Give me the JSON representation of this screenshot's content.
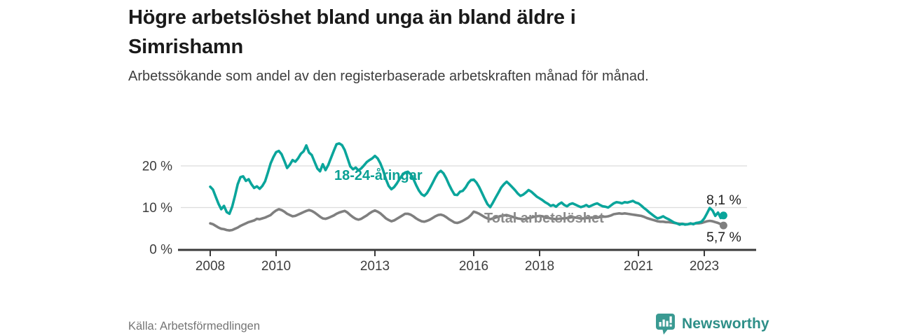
{
  "chart_data": {
    "type": "line",
    "title": "Högre arbetslöshet bland unga än bland äldre i Simrishamn",
    "subtitle": "Arbetssökande som andel av den registerbaserade arbetskraften månad för månad.",
    "source": "Källa: Arbetsförmedlingen",
    "unit": "%",
    "frequency": "monthly",
    "x_start": "2008-01",
    "x_end": "2023-08",
    "x_ticks": [
      2008,
      2010,
      2013,
      2016,
      2018,
      2021,
      2023
    ],
    "y_ticks": [
      {
        "value": 0,
        "label": "0 %"
      },
      {
        "value": 10,
        "label": "10 %"
      },
      {
        "value": 20,
        "label": "20 %"
      }
    ],
    "ylim": [
      0,
      28
    ],
    "grid": "horizontal",
    "legend_position": "inline-annotations",
    "series": [
      {
        "id": "total",
        "name": "Total arbetslöshet",
        "color": "#7f7f7f",
        "end_value": 5.7,
        "end_label": "5,7 %",
        "values": [
          6.2,
          6.0,
          5.6,
          5.2,
          4.9,
          4.8,
          4.6,
          4.5,
          4.6,
          4.9,
          5.2,
          5.6,
          5.9,
          6.2,
          6.5,
          6.7,
          6.9,
          7.3,
          7.2,
          7.4,
          7.6,
          7.9,
          8.2,
          8.8,
          9.3,
          9.6,
          9.4,
          9.0,
          8.5,
          8.2,
          7.9,
          8.0,
          8.3,
          8.6,
          8.9,
          9.2,
          9.4,
          9.2,
          8.8,
          8.3,
          7.8,
          7.4,
          7.3,
          7.5,
          7.8,
          8.1,
          8.5,
          8.8,
          9.0,
          9.2,
          8.8,
          8.2,
          7.7,
          7.3,
          7.1,
          7.3,
          7.7,
          8.1,
          8.6,
          9.0,
          9.3,
          9.0,
          8.6,
          8.0,
          7.4,
          7.0,
          6.7,
          6.9,
          7.3,
          7.7,
          8.1,
          8.5,
          8.5,
          8.3,
          7.9,
          7.4,
          7.0,
          6.7,
          6.6,
          6.8,
          7.1,
          7.5,
          7.9,
          8.2,
          8.3,
          8.1,
          7.7,
          7.2,
          6.8,
          6.4,
          6.3,
          6.5,
          6.8,
          7.2,
          7.6,
          8.2,
          9.0,
          8.8,
          8.5,
          8.1,
          7.7,
          7.4,
          7.2,
          7.4,
          7.6,
          7.8,
          8.0,
          8.1,
          8.2,
          8.0,
          7.8,
          7.6,
          7.4,
          7.3,
          7.2,
          7.3,
          7.5,
          7.6,
          7.8,
          7.9,
          8.0,
          7.9,
          7.7,
          7.5,
          7.4,
          7.3,
          7.2,
          7.3,
          7.4,
          7.4,
          7.5,
          7.6,
          7.7,
          7.6,
          7.5,
          7.4,
          7.4,
          7.5,
          7.5,
          7.6,
          7.6,
          7.7,
          7.7,
          7.8,
          7.8,
          7.9,
          8.1,
          8.4,
          8.5,
          8.6,
          8.5,
          8.6,
          8.5,
          8.4,
          8.3,
          8.2,
          8.1,
          8.0,
          7.8,
          7.5,
          7.3,
          7.1,
          6.9,
          6.7,
          6.6,
          6.6,
          6.5,
          6.5,
          6.4,
          6.3,
          6.2,
          6.1,
          6.1,
          6.0,
          6.0,
          6.1,
          6.1,
          6.2,
          6.2,
          6.3,
          6.5,
          6.7,
          6.8,
          6.7,
          6.5,
          6.3,
          6.0,
          5.7
        ]
      },
      {
        "id": "youth",
        "name": "18-24-åringar",
        "color": "#0aa59b",
        "end_value": 8.1,
        "end_label": "8,1 %",
        "values": [
          15.0,
          14.3,
          12.6,
          10.9,
          9.6,
          10.4,
          8.9,
          8.5,
          10.2,
          12.8,
          15.6,
          17.3,
          17.5,
          16.4,
          16.8,
          15.6,
          14.7,
          15.1,
          14.5,
          15.2,
          16.3,
          18.4,
          20.6,
          22.1,
          23.3,
          23.6,
          22.8,
          21.2,
          19.5,
          20.3,
          21.4,
          21.0,
          21.8,
          22.9,
          23.5,
          24.9,
          23.2,
          22.6,
          21.0,
          19.4,
          18.7,
          20.4,
          19.0,
          20.2,
          21.9,
          23.6,
          25.2,
          25.4,
          25.0,
          23.8,
          21.9,
          19.9,
          19.2,
          19.6,
          18.9,
          19.4,
          20.1,
          20.9,
          21.4,
          21.8,
          22.4,
          21.8,
          20.6,
          18.9,
          16.8,
          15.2,
          14.4,
          14.9,
          15.8,
          16.9,
          17.8,
          18.4,
          18.6,
          18.0,
          16.9,
          15.4,
          14.1,
          13.2,
          12.8,
          13.5,
          14.6,
          15.9,
          17.2,
          18.3,
          18.8,
          18.2,
          17.0,
          15.5,
          14.2,
          13.1,
          13.0,
          13.8,
          14.0,
          14.8,
          15.9,
          16.6,
          16.7,
          16.0,
          14.9,
          13.5,
          12.1,
          10.8,
          10.1,
          11.2,
          12.4,
          13.6,
          14.8,
          15.6,
          16.2,
          15.6,
          14.9,
          14.2,
          13.4,
          12.8,
          13.1,
          13.6,
          14.2,
          13.8,
          13.2,
          12.6,
          12.2,
          11.8,
          11.3,
          10.9,
          10.4,
          10.6,
          10.2,
          10.8,
          11.2,
          10.6,
          10.3,
          10.8,
          11.0,
          10.7,
          10.4,
          10.1,
          10.3,
          10.6,
          10.2,
          10.5,
          10.8,
          11.0,
          10.6,
          10.3,
          10.2,
          10.0,
          10.5,
          11.0,
          11.3,
          11.2,
          11.0,
          11.3,
          11.2,
          11.4,
          11.6,
          11.2,
          11.0,
          10.5,
          9.9,
          9.4,
          8.8,
          8.3,
          7.8,
          7.4,
          7.6,
          7.9,
          7.5,
          7.2,
          6.8,
          6.4,
          6.2,
          5.9,
          6.1,
          5.9,
          6.0,
          6.2,
          6.0,
          6.3,
          6.4,
          6.6,
          7.4,
          8.6,
          9.9,
          9.3,
          8.0,
          8.8,
          7.5,
          8.1
        ]
      }
    ],
    "colors": {
      "youth_line": "#0aa59b",
      "total_line": "#7f7f7f",
      "gridline": "#dcdcdc",
      "axis": "#3a3a3a",
      "tick_label": "#3d3d3d"
    }
  },
  "footer": {
    "brand": "Newsworthy",
    "brand_icon": "newsworthy-speech-bubble-bar-chart-icon",
    "brand_color": "#2e8f88"
  }
}
